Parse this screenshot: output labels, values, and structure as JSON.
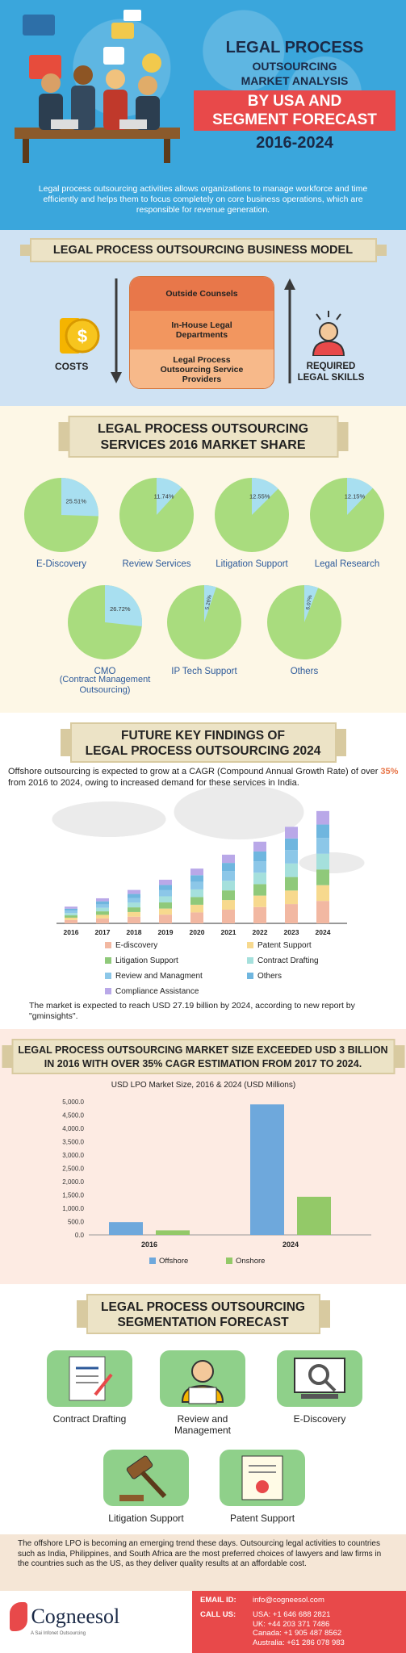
{
  "header": {
    "title1": "LEGAL PROCESS",
    "title2": "OUTSOURCING",
    "title3": "MARKET ANALYSIS",
    "highlight1": "BY USA AND",
    "highlight2": "SEGMENT FORECAST",
    "years": "2016-2024",
    "intro": "Legal process outsourcing activities allows organizations to manage workforce and time efficiently and helps them to focus completely on core business operations, which are responsible for revenue generation."
  },
  "business_model": {
    "title": "LEGAL PROCESS OUTSOURCING BUSINESS MODEL",
    "boxes": [
      "Outside Counsels",
      "In-House Legal Departments",
      "Legal Process Outsourcing Service Providers"
    ],
    "left_label": "COSTS",
    "right_label_1": "REQUIRED",
    "right_label_2": "LEGAL SKILLS"
  },
  "market_share": {
    "title1": "LEGAL PROCESS OUTSOURCING",
    "title2": "SERVICES 2016 MARKET SHARE",
    "pies": [
      {
        "label": "E-Discovery",
        "pct": 25.51,
        "text": "25.51%"
      },
      {
        "label": "Review Services",
        "pct": 11.74,
        "text": "11.74%"
      },
      {
        "label": "Litigation Support",
        "pct": 12.55,
        "text": "12.55%"
      },
      {
        "label": "Legal Research",
        "pct": 12.15,
        "text": "12.15%"
      },
      {
        "label": "CMO",
        "pct": 26.72,
        "text": "26.72%"
      },
      {
        "label": "IP Tech Support",
        "pct": 5.26,
        "text": "5.26%"
      },
      {
        "label": "Others",
        "pct": 6.07,
        "text": "6.07%"
      }
    ],
    "cmo_sub1": "(Contract Management",
    "cmo_sub2": "Outsourcing)"
  },
  "key_findings": {
    "title1": "FUTURE KEY FINDINGS OF",
    "title2": "LEGAL PROCESS OUTSOURCING 2024",
    "text_a": "Offshore outsourcing is expected to grow at a CAGR (Compound Annual Growth Rate) of over ",
    "cagr": "35%",
    "text_b": " from 2016 to 2024, owing to increased demand for these services in India.",
    "note": "The market is expected to reach USD 27.19 billion by 2024, according to new report by \"gminsights\"."
  },
  "market_size": {
    "title1": "LEGAL PROCESS OUTSOURCING MARKET SIZE EXCEEDED USD 3 BILLION",
    "title2": "IN 2016 WITH OVER 35% CAGR ESTIMATION FROM 2017 TO 2024."
  },
  "segmentation": {
    "title1": "LEGAL PROCESS OUTSOURCING",
    "title2": "SEGMENTATION FORECAST",
    "items": [
      "Contract Drafting",
      "Review and",
      "Management",
      "E-Discovery",
      "Litigation Support",
      "Patent Support"
    ]
  },
  "footer": {
    "text": "The offshore LPO is becoming an emerging trend these days. Outsourcing legal activities to countries such as India, Philippines, and South Africa are the most preferred choices of lawyers and law firms in the countries such as the US, as they deliver quality results at an affordable cost.",
    "brand": "Cogneesol",
    "tagline": "A Sai Infonet Outsourcing",
    "email_label": "EMAIL ID:",
    "email": "info@cogneesol.com",
    "call_label": "CALL US:",
    "phones": [
      "USA: +1 646 688 2821",
      "UK: +44 203 371 7486",
      "Canada: +1 905 487 8562",
      "Australia: +61 286 078 983"
    ]
  },
  "colors": {
    "header_bg": "#3aa6dc",
    "highlight": "#e8494a",
    "pie_green": "#a9dc7e",
    "pie_blue": "#a8dff0",
    "offshore": "#6ea8dc",
    "onshore": "#93c968"
  },
  "chart_data": [
    {
      "type": "bar",
      "stacked": true,
      "categories": [
        "2016",
        "2017",
        "2018",
        "2019",
        "2020",
        "2021",
        "2022",
        "2023",
        "2024"
      ],
      "totals": [
        18,
        27,
        36,
        47,
        59,
        74,
        88,
        104,
        121
      ],
      "series": [
        {
          "name": "E-discovery",
          "color": "#f2b8a2"
        },
        {
          "name": "Patent Support",
          "color": "#f7d98e"
        },
        {
          "name": "Litigation Support",
          "color": "#8fc97a"
        },
        {
          "name": "Contract Drafting",
          "color": "#a5e0dc"
        },
        {
          "name": "Review and Managment",
          "color": "#8cc7e8"
        },
        {
          "name": "Others",
          "color": "#6fb6df"
        },
        {
          "name": "Compliance Assistance",
          "color": "#b9a8e8"
        }
      ],
      "shares": [
        0.2,
        0.14,
        0.14,
        0.14,
        0.14,
        0.12,
        0.12
      ]
    },
    {
      "type": "bar",
      "title": "USD LPO Market Size, 2016 & 2024 (USD Millions)",
      "categories": [
        "2016",
        "2024"
      ],
      "series": [
        {
          "name": "Offshore",
          "values": [
            480,
            4900
          ]
        },
        {
          "name": "Onshore",
          "values": [
            170,
            1430
          ]
        }
      ],
      "ylim": [
        0,
        5000
      ],
      "yticks": [
        "0.0",
        "500.0",
        "1,000.0",
        "1,500.0",
        "2,000.0",
        "2,500.0",
        "3,000.0",
        "3,500.0",
        "4,000.0",
        "4,500.0",
        "5,000.0"
      ]
    }
  ]
}
